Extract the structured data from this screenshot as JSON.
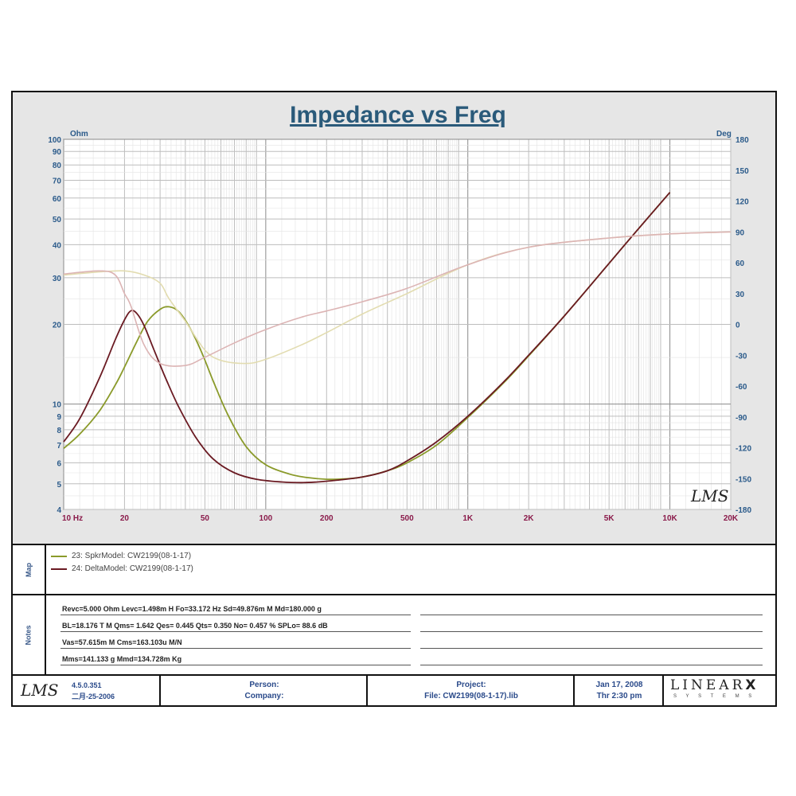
{
  "chart_data": {
    "type": "line",
    "title": "Impedance vs Freq",
    "left_axis_unit": "Ohm",
    "right_axis_unit": "Deg",
    "x_scale": "log",
    "y_scale": "log",
    "xlim": [
      10,
      20000
    ],
    "ylim": [
      4,
      100
    ],
    "y2lim": [
      -180,
      180
    ],
    "grid": true,
    "x_ticks": [
      {
        "v": 10,
        "label": "10 Hz"
      },
      {
        "v": 20,
        "label": "20"
      },
      {
        "v": 50,
        "label": "50"
      },
      {
        "v": 100,
        "label": "100"
      },
      {
        "v": 200,
        "label": "200"
      },
      {
        "v": 500,
        "label": "500"
      },
      {
        "v": 1000,
        "label": "1K"
      },
      {
        "v": 2000,
        "label": "2K"
      },
      {
        "v": 5000,
        "label": "5K"
      },
      {
        "v": 10000,
        "label": "10K"
      },
      {
        "v": 20000,
        "label": "20K"
      }
    ],
    "y_ticks": [
      {
        "v": 4,
        "label": "4"
      },
      {
        "v": 5,
        "label": "5"
      },
      {
        "v": 6,
        "label": "6"
      },
      {
        "v": 7,
        "label": "7"
      },
      {
        "v": 8,
        "label": "8"
      },
      {
        "v": 9,
        "label": "9"
      },
      {
        "v": 10,
        "label": "10"
      },
      {
        "v": 20,
        "label": "20"
      },
      {
        "v": 30,
        "label": "30"
      },
      {
        "v": 40,
        "label": "40"
      },
      {
        "v": 50,
        "label": "50"
      },
      {
        "v": 60,
        "label": "60"
      },
      {
        "v": 70,
        "label": "70"
      },
      {
        "v": 80,
        "label": "80"
      },
      {
        "v": 90,
        "label": "90"
      },
      {
        "v": 100,
        "label": "100"
      }
    ],
    "y2_ticks": [
      {
        "v": 180,
        "label": "180"
      },
      {
        "v": 150,
        "label": "150"
      },
      {
        "v": 120,
        "label": "120"
      },
      {
        "v": 90,
        "label": "90"
      },
      {
        "v": 60,
        "label": "60"
      },
      {
        "v": 30,
        "label": "30"
      },
      {
        "v": 0,
        "label": "0"
      },
      {
        "v": -30,
        "label": "-30"
      },
      {
        "v": -60,
        "label": "-60"
      },
      {
        "v": -90,
        "label": "-90"
      },
      {
        "v": -120,
        "label": "-120"
      },
      {
        "v": -150,
        "label": "-150"
      },
      {
        "v": -180,
        "label": "-180"
      }
    ],
    "series": [
      {
        "name": "23: SpkrModel: CW2199(08-1-17)",
        "axis": "left",
        "color": "#8a9a2a",
        "x": [
          10,
          12,
          15,
          18,
          20,
          23,
          26,
          30,
          33.2,
          37,
          42,
          48,
          55,
          65,
          80,
          100,
          130,
          160,
          200,
          250,
          300,
          400,
          500,
          700,
          1000,
          1500,
          2000,
          3000,
          5000,
          7000,
          10000
        ],
        "y": [
          6.8,
          7.7,
          9.4,
          11.8,
          13.8,
          17.2,
          20.5,
          22.8,
          23.3,
          22.4,
          19.5,
          15.8,
          12.2,
          9.1,
          6.9,
          5.9,
          5.45,
          5.28,
          5.2,
          5.22,
          5.3,
          5.6,
          6.0,
          7.0,
          8.9,
          12.0,
          15.2,
          21.5,
          34.0,
          46.0,
          63.0
        ]
      },
      {
        "name": "24: DeltaModel: CW2199(08-1-17)",
        "axis": "left",
        "color": "#6a1a22",
        "x": [
          10,
          12,
          15,
          18,
          20,
          21.5,
          23,
          25,
          28,
          32,
          37,
          45,
          55,
          70,
          90,
          120,
          150,
          180,
          220,
          300,
          400,
          500,
          700,
          1000,
          1500,
          2000,
          3000,
          5000,
          7000,
          10000
        ],
        "y": [
          7.2,
          8.8,
          12.5,
          17.5,
          20.8,
          22.5,
          22.0,
          19.8,
          16.0,
          12.5,
          9.8,
          7.5,
          6.2,
          5.5,
          5.2,
          5.08,
          5.05,
          5.08,
          5.15,
          5.3,
          5.6,
          6.1,
          7.2,
          9.0,
          12.1,
          15.3,
          21.5,
          34.0,
          46.0,
          63.0
        ]
      },
      {
        "name": "23: SpkrModel: CW2199(08-1-17) (phase)",
        "axis": "right",
        "color": "#e2dcb0",
        "x": [
          10,
          15,
          20,
          25,
          30,
          33.2,
          40,
          50,
          60,
          80,
          100,
          150,
          200,
          300,
          500,
          1000,
          2000,
          5000,
          10000,
          20000
        ],
        "y": [
          48,
          51,
          52,
          48,
          40,
          25,
          3,
          -25,
          -35,
          -38,
          -34,
          -20,
          -8,
          10,
          30,
          58,
          75,
          84,
          88,
          90
        ]
      },
      {
        "name": "24: DeltaModel: CW2199(08-1-17) (phase)",
        "axis": "right",
        "color": "#dcb4b4",
        "x": [
          10,
          15,
          18,
          20,
          21.5,
          25,
          30,
          40,
          50,
          70,
          100,
          150,
          200,
          300,
          500,
          1000,
          2000,
          5000,
          10000,
          20000
        ],
        "y": [
          49,
          52,
          48,
          30,
          18,
          -20,
          -38,
          -40,
          -32,
          -18,
          -5,
          7,
          13,
          22,
          35,
          58,
          75,
          84,
          88,
          90
        ]
      }
    ]
  },
  "axis_labels": {
    "left_unit": "Ohm",
    "right_unit": "Deg"
  },
  "watermark": "LMS",
  "map": {
    "side_label": "Map",
    "items": [
      {
        "label": "23: SpkrModel: CW2199(08-1-17)",
        "color": "#8a9a2a"
      },
      {
        "label": "24: DeltaModel: CW2199(08-1-17)",
        "color": "#6a1a22"
      }
    ]
  },
  "notes": {
    "side_label": "Notes",
    "lines": [
      "Revc=5.000 Ohm  Levc=1.498m H  Fo=33.172 Hz  Sd=49.876m M   Md=180.000 g",
      "BL=18.176 T M  Qms= 1.642  Qes= 0.445  Qts= 0.350  No= 0.457 %  SPLo= 88.6 dB",
      "Vas=57.615m M    Cms=163.103u M/N",
      "Mms=141.133 g  Mmd=134.728m Kg"
    ]
  },
  "footer": {
    "logo": "LMS",
    "version": "4.5.0.351",
    "date_code": "二月-25-2006",
    "person_label": "Person:",
    "company_label": "Company:",
    "project_label": "Project:",
    "file_label": "File: CW2199(08-1-17).lib",
    "date": "Jan 17, 2008",
    "time": "Thr  2:30 pm",
    "brand": "LINEAR",
    "brand_x": "X",
    "brand_sub": "S Y S T E M S"
  }
}
